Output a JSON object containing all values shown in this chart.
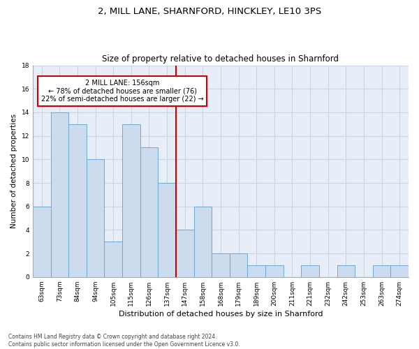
{
  "title": "2, MILL LANE, SHARNFORD, HINCKLEY, LE10 3PS",
  "subtitle": "Size of property relative to detached houses in Sharnford",
  "xlabel": "Distribution of detached houses by size in Sharnford",
  "ylabel": "Number of detached properties",
  "bin_labels": [
    "63sqm",
    "73sqm",
    "84sqm",
    "94sqm",
    "105sqm",
    "115sqm",
    "126sqm",
    "137sqm",
    "147sqm",
    "158sqm",
    "168sqm",
    "179sqm",
    "189sqm",
    "200sqm",
    "211sqm",
    "221sqm",
    "232sqm",
    "242sqm",
    "253sqm",
    "263sqm",
    "274sqm"
  ],
  "bar_heights": [
    6,
    14,
    13,
    10,
    3,
    13,
    11,
    8,
    4,
    6,
    2,
    2,
    1,
    1,
    0,
    1,
    0,
    1,
    0,
    1,
    1
  ],
  "bar_color": "#ccdcee",
  "bar_edge_color": "#6aaad4",
  "grid_color": "#c8d4e8",
  "background_color": "#e8eef8",
  "vline_x": 7.5,
  "vline_color": "#cc0000",
  "annotation_line1": "2 MILL LANE: 156sqm",
  "annotation_line2": "← 78% of detached houses are smaller (76)",
  "annotation_line3": "22% of semi-detached houses are larger (22) →",
  "annotation_box_color": "#cc0000",
  "ylim": [
    0,
    18
  ],
  "yticks": [
    0,
    2,
    4,
    6,
    8,
    10,
    12,
    14,
    16,
    18
  ],
  "footnote_line1": "Contains HM Land Registry data © Crown copyright and database right 2024.",
  "footnote_line2": "Contains public sector information licensed under the Open Government Licence v3.0.",
  "title_fontsize": 9.5,
  "subtitle_fontsize": 8.5,
  "xlabel_fontsize": 8,
  "ylabel_fontsize": 7.5,
  "tick_fontsize": 6.5,
  "annot_fontsize": 7,
  "footnote_fontsize": 5.5
}
